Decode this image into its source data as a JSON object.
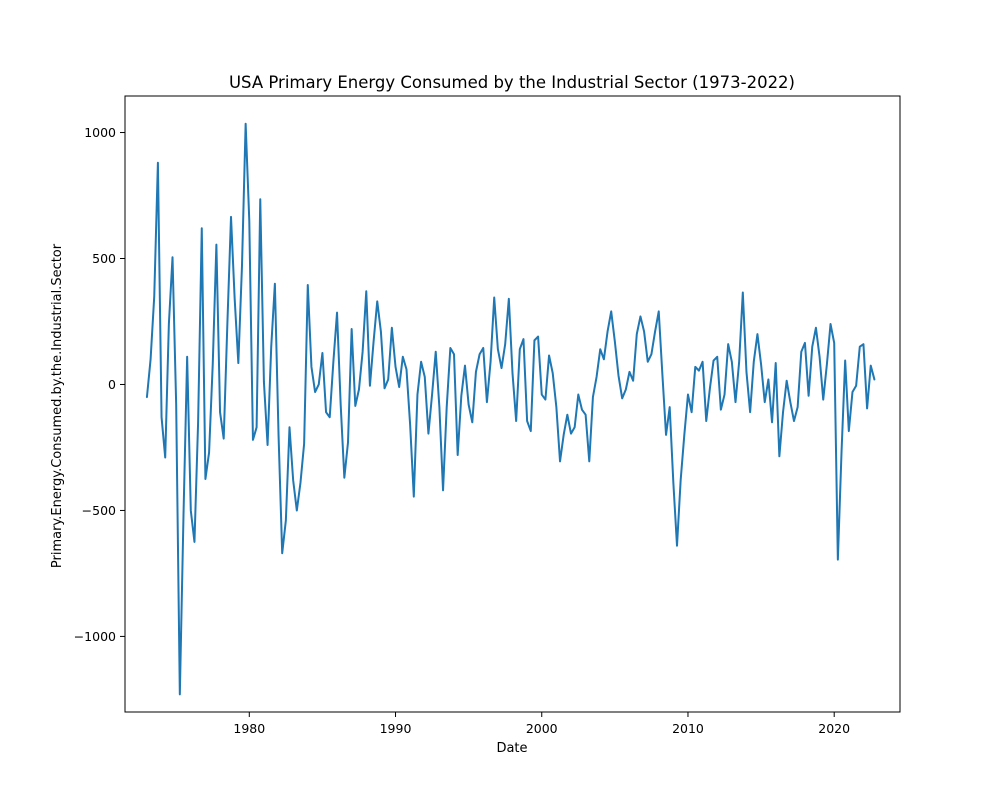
{
  "chart_data": {
    "type": "line",
    "title": "USA Primary Energy Consumed by the Industrial Sector (1973-2022)",
    "xlabel": "Date",
    "ylabel": "Primary.Energy.Consumed.by.the.Industrial.Sector",
    "x_ticks": [
      1980,
      1990,
      2000,
      2010,
      2020
    ],
    "y_ticks": [
      -1000,
      -500,
      0,
      500,
      1000
    ],
    "y_tick_labels": [
      "−1000",
      "−500",
      "0",
      "500",
      "1000"
    ],
    "xlim": [
      1971.5,
      2024.5
    ],
    "ylim": [
      -1300,
      1145
    ],
    "grid": false,
    "series_color": "#1f77b4",
    "series": [
      {
        "x": [
          1973.0,
          1973.25,
          1973.5,
          1973.75,
          1974.0,
          1974.25,
          1974.5,
          1974.75,
          1975.0,
          1975.25,
          1975.5,
          1975.75,
          1976.0,
          1976.25,
          1976.5,
          1976.75,
          1977.0,
          1977.25,
          1977.5,
          1977.75,
          1978.0,
          1978.25,
          1978.5,
          1978.75,
          1979.0,
          1979.25,
          1979.5,
          1979.75,
          1980.0,
          1980.25,
          1980.5,
          1980.75,
          1981.0,
          1981.25,
          1981.5,
          1981.75,
          1982.0,
          1982.25,
          1982.5,
          1982.75,
          1983.0,
          1983.25,
          1983.5,
          1983.75,
          1984.0,
          1984.25,
          1984.5,
          1984.75,
          1985.0,
          1985.25,
          1985.5,
          1985.75,
          1986.0,
          1986.25,
          1986.5,
          1986.75,
          1987.0,
          1987.25,
          1987.5,
          1987.75,
          1988.0,
          1988.25,
          1988.5,
          1988.75,
          1989.0,
          1989.25,
          1989.5,
          1989.75,
          1990.0,
          1990.25,
          1990.5,
          1990.75,
          1991.0,
          1991.25,
          1991.5,
          1991.75,
          1992.0,
          1992.25,
          1992.5,
          1992.75,
          1993.0,
          1993.25,
          1993.5,
          1993.75,
          1994.0,
          1994.25,
          1994.5,
          1994.75,
          1995.0,
          1995.25,
          1995.5,
          1995.75,
          1996.0,
          1996.25,
          1996.5,
          1996.75,
          1997.0,
          1997.25,
          1997.5,
          1997.75,
          1998.0,
          1998.25,
          1998.5,
          1998.75,
          1999.0,
          1999.25,
          1999.5,
          1999.75,
          2000.0,
          2000.25,
          2000.5,
          2000.75,
          2001.0,
          2001.25,
          2001.5,
          2001.75,
          2002.0,
          2002.25,
          2002.5,
          2002.75,
          2003.0,
          2003.25,
          2003.5,
          2003.75,
          2004.0,
          2004.25,
          2004.5,
          2004.75,
          2005.0,
          2005.25,
          2005.5,
          2005.75,
          2006.0,
          2006.25,
          2006.5,
          2006.75,
          2007.0,
          2007.25,
          2007.5,
          2007.75,
          2008.0,
          2008.25,
          2008.5,
          2008.75,
          2009.0,
          2009.25,
          2009.5,
          2009.75,
          2010.0,
          2010.25,
          2010.5,
          2010.75,
          2011.0,
          2011.25,
          2011.5,
          2011.75,
          2012.0,
          2012.25,
          2012.5,
          2012.75,
          2013.0,
          2013.25,
          2013.5,
          2013.75,
          2014.0,
          2014.25,
          2014.5,
          2014.75,
          2015.0,
          2015.25,
          2015.5,
          2015.75,
          2016.0,
          2016.25,
          2016.5,
          2016.75,
          2017.0,
          2017.25,
          2017.5,
          2017.75,
          2018.0,
          2018.25,
          2018.5,
          2018.75,
          2019.0,
          2019.25,
          2019.5,
          2019.75,
          2020.0,
          2020.25,
          2020.5,
          2020.75,
          2021.0,
          2021.25,
          2021.5,
          2021.75,
          2022.0,
          2022.25,
          2022.5,
          2022.75
        ],
        "y": [
          -50,
          100,
          350,
          880,
          -130,
          -290,
          240,
          505,
          -80,
          -1230,
          -520,
          110,
          -500,
          -625,
          -150,
          620,
          -375,
          -270,
          80,
          555,
          -110,
          -215,
          240,
          665,
          340,
          85,
          470,
          1035,
          650,
          -220,
          -170,
          735,
          10,
          -240,
          150,
          400,
          -200,
          -670,
          -540,
          -170,
          -380,
          -500,
          -390,
          -235,
          395,
          70,
          -30,
          0,
          125,
          -110,
          -130,
          90,
          285,
          -80,
          -370,
          -230,
          220,
          -85,
          -20,
          130,
          370,
          -5,
          170,
          330,
          210,
          -15,
          20,
          225,
          70,
          -10,
          110,
          60,
          -160,
          -445,
          -40,
          90,
          30,
          -195,
          -40,
          130,
          -90,
          -420,
          -90,
          145,
          120,
          -280,
          -45,
          75,
          -80,
          -150,
          50,
          120,
          145,
          -70,
          90,
          345,
          140,
          65,
          160,
          340,
          45,
          -145,
          140,
          180,
          -145,
          -185,
          175,
          190,
          -40,
          -60,
          115,
          45,
          -90,
          -305,
          -200,
          -120,
          -195,
          -170,
          -40,
          -100,
          -120,
          -305,
          -50,
          30,
          140,
          100,
          210,
          290,
          170,
          35,
          -55,
          -20,
          50,
          15,
          200,
          270,
          210,
          90,
          120,
          210,
          290,
          40,
          -200,
          -90,
          -390,
          -640,
          -380,
          -200,
          -40,
          -110,
          70,
          55,
          90,
          -145,
          -15,
          95,
          110,
          -100,
          -40,
          160,
          90,
          -70,
          90,
          365,
          50,
          -110,
          90,
          200,
          80,
          -70,
          20,
          -150,
          85,
          -285,
          -110,
          15,
          -70,
          -145,
          -90,
          130,
          165,
          -45,
          150,
          225,
          110,
          -60,
          80,
          240,
          165,
          -695,
          -270,
          95,
          -185,
          -30,
          -5,
          150,
          160,
          -95,
          75,
          20
        ]
      }
    ]
  }
}
